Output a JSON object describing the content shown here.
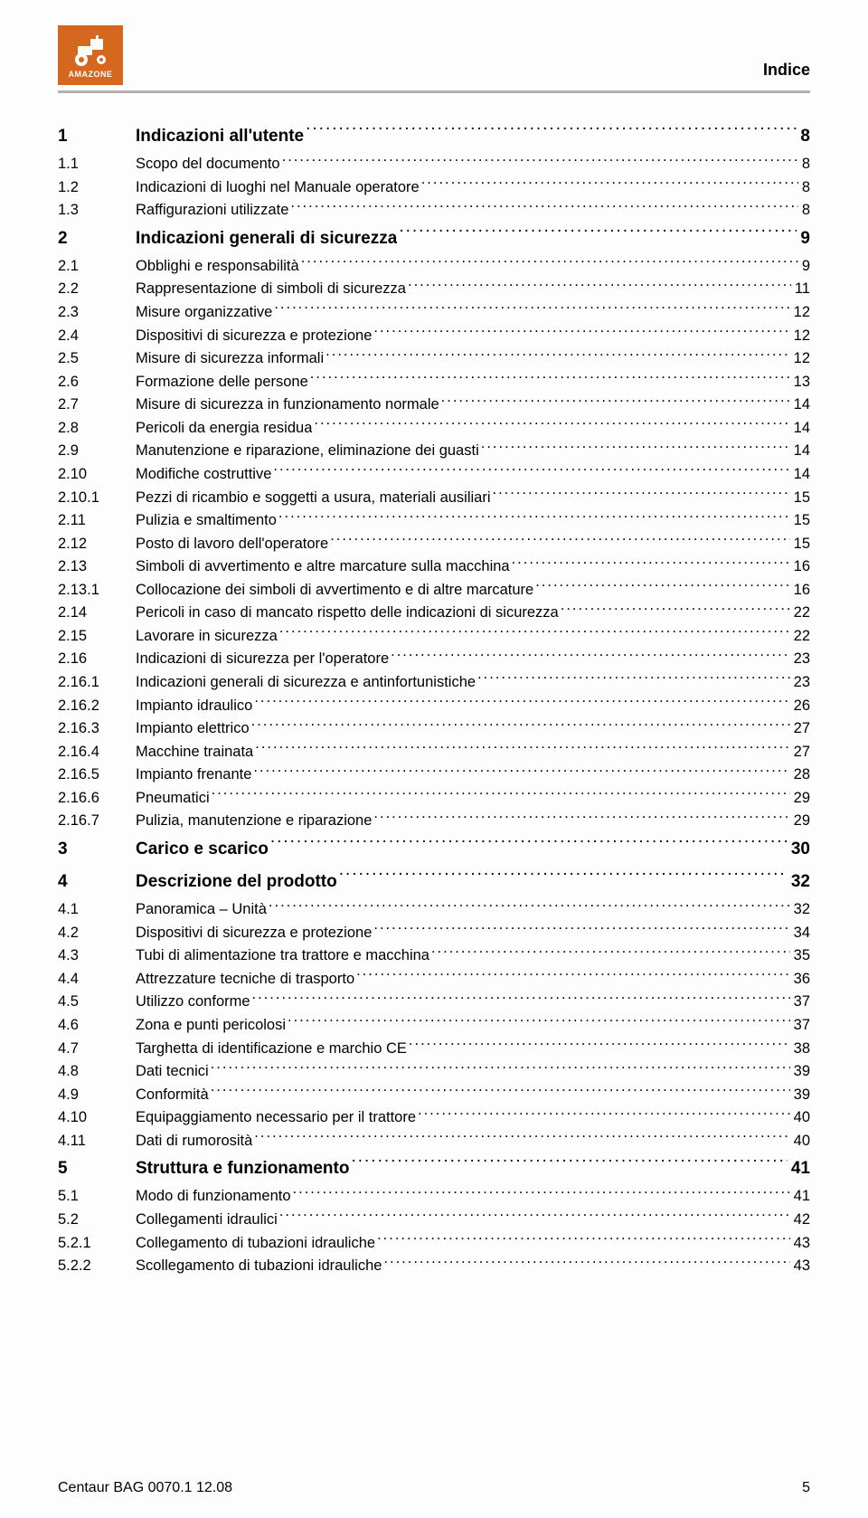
{
  "header": {
    "brand": "AMAZONE",
    "logo_color": "#d6671e",
    "section_title": "Indice",
    "rule_color": "#b0b0b0"
  },
  "toc": [
    {
      "num": "1",
      "title": "Indicazioni all'utente",
      "page": "8",
      "bold": true
    },
    {
      "num": "1.1",
      "title": "Scopo del documento",
      "page": "8",
      "bold": false
    },
    {
      "num": "1.2",
      "title": "Indicazioni di luoghi nel Manuale operatore",
      "page": "8",
      "bold": false
    },
    {
      "num": "1.3",
      "title": "Raffigurazioni utilizzate",
      "page": "8",
      "bold": false
    },
    {
      "num": "2",
      "title": "Indicazioni generali di sicurezza",
      "page": "9",
      "bold": true
    },
    {
      "num": "2.1",
      "title": "Obblighi e responsabilità",
      "page": "9",
      "bold": false
    },
    {
      "num": "2.2",
      "title": "Rappresentazione di simboli di sicurezza",
      "page": "11",
      "bold": false
    },
    {
      "num": "2.3",
      "title": "Misure organizzative",
      "page": "12",
      "bold": false
    },
    {
      "num": "2.4",
      "title": "Dispositivi di sicurezza e protezione",
      "page": "12",
      "bold": false
    },
    {
      "num": "2.5",
      "title": "Misure di sicurezza informali",
      "page": "12",
      "bold": false
    },
    {
      "num": "2.6",
      "title": "Formazione delle persone",
      "page": "13",
      "bold": false
    },
    {
      "num": "2.7",
      "title": "Misure di sicurezza in funzionamento normale",
      "page": "14",
      "bold": false
    },
    {
      "num": "2.8",
      "title": "Pericoli da energia residua",
      "page": "14",
      "bold": false
    },
    {
      "num": "2.9",
      "title": "Manutenzione e riparazione, eliminazione dei guasti",
      "page": "14",
      "bold": false
    },
    {
      "num": "2.10",
      "title": "Modifiche costruttive",
      "page": "14",
      "bold": false
    },
    {
      "num": "2.10.1",
      "title": "Pezzi di ricambio e soggetti a usura, materiali ausiliari",
      "page": "15",
      "bold": false
    },
    {
      "num": "2.11",
      "title": "Pulizia e smaltimento",
      "page": "15",
      "bold": false
    },
    {
      "num": "2.12",
      "title": "Posto di lavoro dell'operatore",
      "page": "15",
      "bold": false
    },
    {
      "num": "2.13",
      "title": "Simboli di avvertimento e altre marcature sulla macchina",
      "page": "16",
      "bold": false
    },
    {
      "num": "2.13.1",
      "title": "Collocazione dei simboli di avvertimento e di altre marcature",
      "page": "16",
      "bold": false
    },
    {
      "num": "2.14",
      "title": "Pericoli in caso di mancato rispetto delle indicazioni di sicurezza",
      "page": "22",
      "bold": false
    },
    {
      "num": "2.15",
      "title": "Lavorare in sicurezza",
      "page": "22",
      "bold": false
    },
    {
      "num": "2.16",
      "title": "Indicazioni di sicurezza per l'operatore",
      "page": "23",
      "bold": false
    },
    {
      "num": "2.16.1",
      "title": "Indicazioni generali di sicurezza e antinfortunistiche",
      "page": "23",
      "bold": false
    },
    {
      "num": "2.16.2",
      "title": "Impianto idraulico",
      "page": "26",
      "bold": false
    },
    {
      "num": "2.16.3",
      "title": "Impianto elettrico",
      "page": "27",
      "bold": false
    },
    {
      "num": "2.16.4",
      "title": "Macchine trainata",
      "page": "27",
      "bold": false
    },
    {
      "num": "2.16.5",
      "title": "Impianto frenante",
      "page": "28",
      "bold": false
    },
    {
      "num": "2.16.6",
      "title": "Pneumatici",
      "page": "29",
      "bold": false
    },
    {
      "num": "2.16.7",
      "title": "Pulizia, manutenzione e riparazione",
      "page": "29",
      "bold": false
    },
    {
      "num": "3",
      "title": "Carico e scarico",
      "page": "30",
      "bold": true
    },
    {
      "num": "4",
      "title": "Descrizione del prodotto",
      "page": "32",
      "bold": true
    },
    {
      "num": "4.1",
      "title": "Panoramica – Unità",
      "page": "32",
      "bold": false
    },
    {
      "num": "4.2",
      "title": "Dispositivi di sicurezza e protezione",
      "page": "34",
      "bold": false
    },
    {
      "num": "4.3",
      "title": "Tubi di alimentazione tra trattore e macchina",
      "page": "35",
      "bold": false
    },
    {
      "num": "4.4",
      "title": "Attrezzature tecniche di trasporto",
      "page": "36",
      "bold": false
    },
    {
      "num": "4.5",
      "title": "Utilizzo conforme",
      "page": "37",
      "bold": false
    },
    {
      "num": "4.6",
      "title": "Zona e punti pericolosi",
      "page": "37",
      "bold": false
    },
    {
      "num": "4.7",
      "title": "Targhetta di identificazione e marchio CE",
      "page": "38",
      "bold": false
    },
    {
      "num": "4.8",
      "title": "Dati tecnici",
      "page": "39",
      "bold": false
    },
    {
      "num": "4.9",
      "title": "Conformità",
      "page": "39",
      "bold": false
    },
    {
      "num": "4.10",
      "title": "Equipaggiamento necessario per il trattore",
      "page": "40",
      "bold": false
    },
    {
      "num": "4.11",
      "title": "Dati di rumorosità",
      "page": "40",
      "bold": false
    },
    {
      "num": "5",
      "title": "Struttura e funzionamento",
      "page": "41",
      "bold": true
    },
    {
      "num": "5.1",
      "title": "Modo di funzionamento",
      "page": "41",
      "bold": false
    },
    {
      "num": "5.2",
      "title": "Collegamenti idraulici",
      "page": "42",
      "bold": false
    },
    {
      "num": "5.2.1",
      "title": "Collegamento di tubazioni idrauliche",
      "page": "43",
      "bold": false
    },
    {
      "num": "5.2.2",
      "title": "Scollegamento di tubazioni idrauliche",
      "page": "43",
      "bold": false
    }
  ],
  "footer": {
    "doc_ref": "Centaur  BAG 0070.1  12.08",
    "page_number": "5"
  }
}
